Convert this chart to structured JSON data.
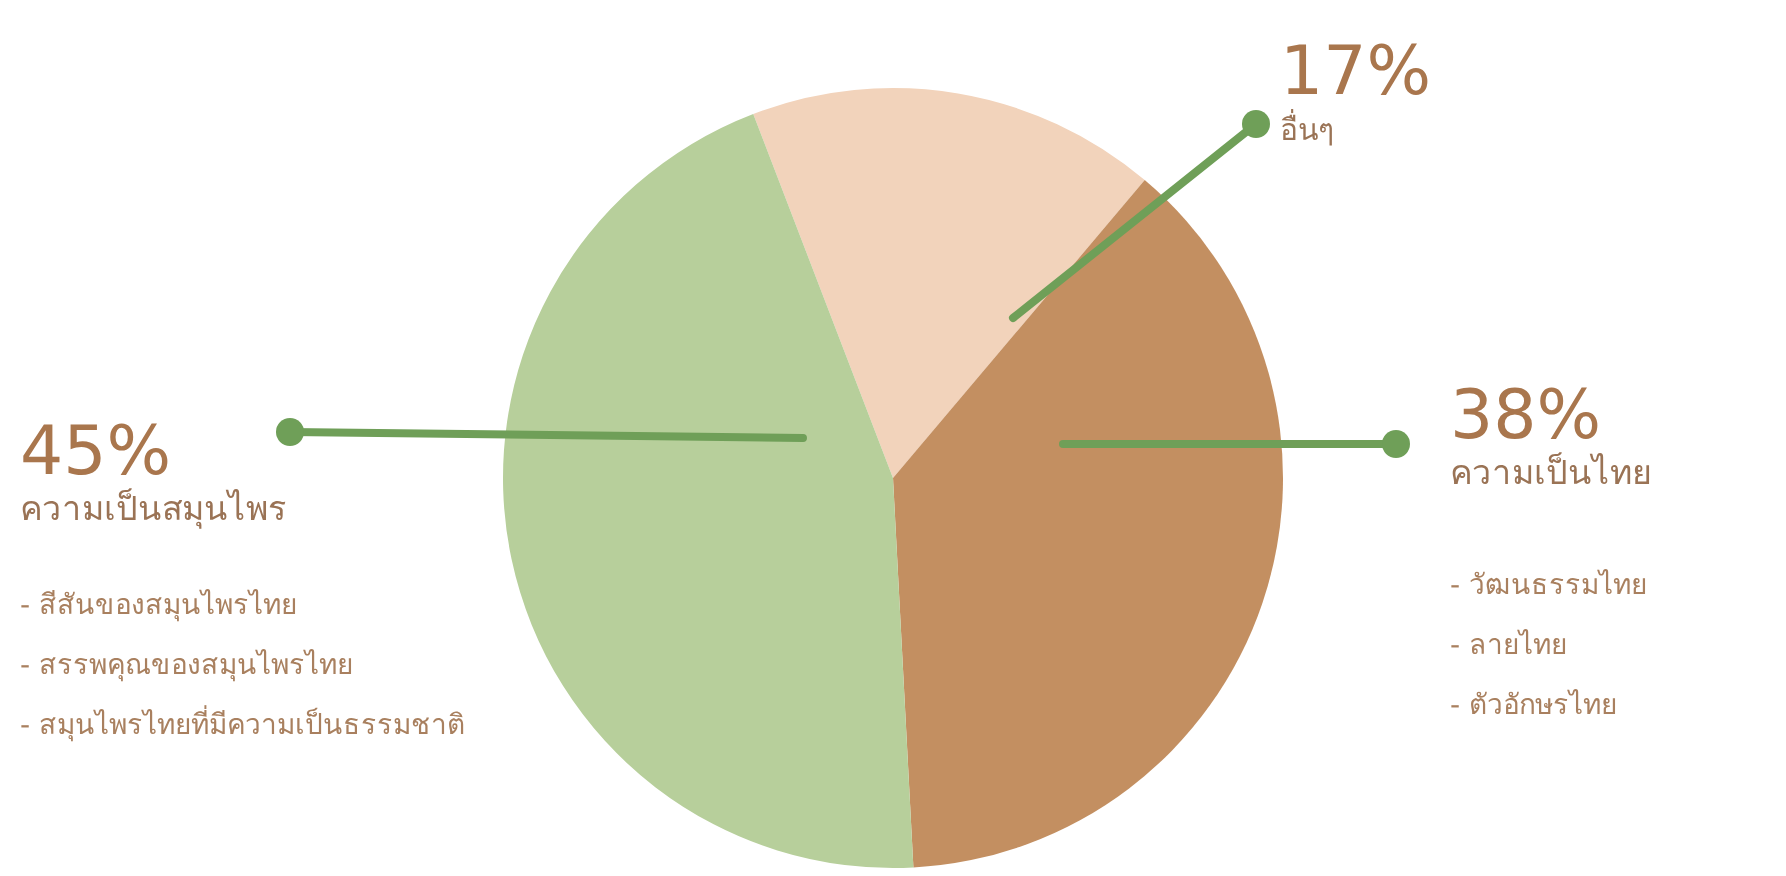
{
  "chart_data": {
    "type": "pie",
    "categories": [
      "อื่นๆ",
      "ความเป็นไทย",
      "ความเป็นสมุนไพร"
    ],
    "values": [
      17,
      38,
      45
    ],
    "colors": [
      "#f2d3bb",
      "#c38f61",
      "#b7cf9b"
    ],
    "value_labels": [
      "17%",
      "38%",
      "45%"
    ],
    "annotations": [
      "- สีสันของสมุนไพรไทย",
      "- สรรพคุณของสมุนไพรไทย",
      "- สมุนไพรไทยที่มีความเป็นธรรมชาติ",
      "- วัฒนธรรมไทย",
      "- ลายไทย",
      "- ตัวอักษรไทย"
    ],
    "legend": false
  }
}
